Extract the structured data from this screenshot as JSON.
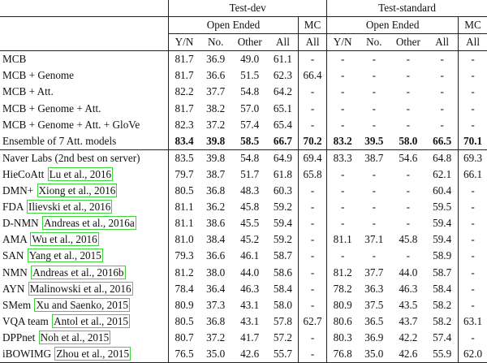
{
  "header": {
    "group_testdev": "Test-dev",
    "group_teststd": "Test-standard",
    "open_ended": "Open Ended",
    "mc": "MC",
    "cols_oe": [
      "Y/N",
      "No.",
      "Other",
      "All"
    ],
    "col_mc": "All"
  },
  "section1": [
    {
      "name": "MCB",
      "cite": "",
      "vals": [
        "81.7",
        "36.9",
        "49.0",
        "61.1",
        "-",
        "-",
        "-",
        "-",
        "-",
        "-"
      ],
      "bold": false
    },
    {
      "name": "MCB + Genome",
      "cite": "",
      "vals": [
        "81.7",
        "36.6",
        "51.5",
        "62.3",
        "66.4",
        "-",
        "-",
        "-",
        "-",
        "-"
      ],
      "bold": false
    },
    {
      "name": "MCB + Att.",
      "cite": "",
      "vals": [
        "82.2",
        "37.7",
        "54.8",
        "64.2",
        "-",
        "-",
        "-",
        "-",
        "-",
        "-"
      ],
      "bold": false
    },
    {
      "name": "MCB + Genome + Att.",
      "cite": "",
      "vals": [
        "81.7",
        "38.2",
        "57.0",
        "65.1",
        "-",
        "-",
        "-",
        "-",
        "-",
        "-"
      ],
      "bold": false
    },
    {
      "name": "MCB + Genome + Att. + GloVe",
      "cite": "",
      "vals": [
        "82.3",
        "37.2",
        "57.4",
        "65.4",
        "-",
        "-",
        "-",
        "-",
        "-",
        "-"
      ],
      "bold": false
    },
    {
      "name": "Ensemble of 7 Att. models",
      "cite": "",
      "vals": [
        "83.4",
        "39.8",
        "58.5",
        "66.7",
        "70.2",
        "83.2",
        "39.5",
        "58.0",
        "66.5",
        "70.1"
      ],
      "bold": true
    }
  ],
  "section2": [
    {
      "name": "Naver Labs (2nd best on server)",
      "cite": "",
      "vals": [
        "83.5",
        "39.8",
        "54.8",
        "64.9",
        "69.4",
        "83.3",
        "38.7",
        "54.6",
        "64.8",
        "69.3"
      ]
    },
    {
      "name": "HieCoAtt",
      "cite": "Lu et al., 2016",
      "vals": [
        "79.7",
        "38.7",
        "51.7",
        "61.8",
        "65.8",
        "-",
        "-",
        "-",
        "62.1",
        "66.1"
      ]
    },
    {
      "name": "DMN+",
      "cite": "Xiong et al., 2016",
      "vals": [
        "80.5",
        "36.8",
        "48.3",
        "60.3",
        "-",
        "-",
        "-",
        "-",
        "60.4",
        "-"
      ]
    },
    {
      "name": "FDA",
      "cite": "Ilievski et al., 2016",
      "vals": [
        "81.1",
        "36.2",
        "45.8",
        "59.2",
        "-",
        "-",
        "-",
        "-",
        "59.5",
        "-"
      ]
    },
    {
      "name": "D-NMN",
      "cite": "Andreas et al., 2016a",
      "vals": [
        "81.1",
        "38.6",
        "45.5",
        "59.4",
        "-",
        "-",
        "-",
        "-",
        "59.4",
        "-"
      ]
    },
    {
      "name": "AMA",
      "cite": "Wu et al., 2016",
      "vals": [
        "81.0",
        "38.4",
        "45.2",
        "59.2",
        "-",
        "81.1",
        "37.1",
        "45.8",
        "59.4",
        "-"
      ]
    },
    {
      "name": "SAN",
      "cite": "Yang et al., 2015",
      "vals": [
        "79.3",
        "36.6",
        "46.1",
        "58.7",
        "-",
        "-",
        "-",
        "-",
        "58.9",
        "-"
      ]
    },
    {
      "name": "NMN",
      "cite": "Andreas et al., 2016b",
      "vals": [
        "81.2",
        "38.0",
        "44.0",
        "58.6",
        "-",
        "81.2",
        "37.7",
        "44.0",
        "58.7",
        "-"
      ]
    },
    {
      "name": "AYN",
      "cite": "Malinowski et al., 2016",
      "vals": [
        "78.4",
        "36.4",
        "46.3",
        "58.4",
        "-",
        "78.2",
        "36.3",
        "46.3",
        "58.4",
        "-"
      ]
    },
    {
      "name": "SMem",
      "cite": "Xu and Saenko, 2015",
      "vals": [
        "80.9",
        "37.3",
        "43.1",
        "58.0",
        "-",
        "80.9",
        "37.5",
        "43.5",
        "58.2",
        "-"
      ]
    },
    {
      "name": "VQA team",
      "cite": "Antol et al., 2015",
      "vals": [
        "80.5",
        "36.8",
        "43.1",
        "57.8",
        "62.7",
        "80.6",
        "36.5",
        "43.7",
        "58.2",
        "63.1"
      ]
    },
    {
      "name": "DPPnet",
      "cite": "Noh et al., 2015",
      "vals": [
        "80.7",
        "37.2",
        "41.7",
        "57.2",
        "-",
        "80.3",
        "36.9",
        "42.2",
        "57.4",
        "-"
      ]
    },
    {
      "name": "iBOWIMG",
      "cite": "Zhou et al., 2015",
      "vals": [
        "76.5",
        "35.0",
        "42.6",
        "55.7",
        "-",
        "76.8",
        "35.0",
        "42.6",
        "55.9",
        "62.0"
      ]
    }
  ]
}
